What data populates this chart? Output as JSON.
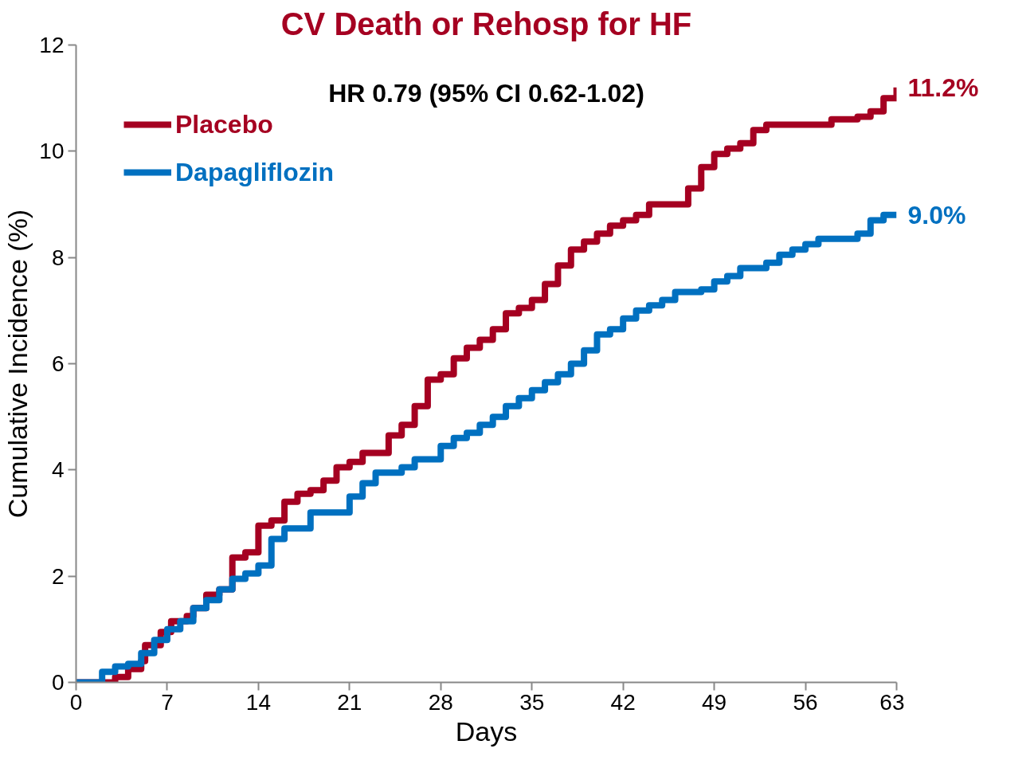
{
  "chart_data": {
    "type": "step",
    "title": "CV Death or Rehosp for HF",
    "xlabel": "Days",
    "ylabel": "Cumulative Incidence (%)",
    "xlim": [
      0,
      63
    ],
    "xticks": [
      0,
      7,
      14,
      21,
      28,
      35,
      42,
      49,
      56,
      63
    ],
    "ylim": [
      0,
      12
    ],
    "yticks": [
      0,
      2,
      4,
      6,
      8,
      10,
      12
    ],
    "grid": false,
    "legend": "top left",
    "line_style": "solid",
    "marker": "none",
    "series": [
      {
        "name": "Placebo",
        "color": "#a50021",
        "x": [
          0,
          3,
          4,
          5,
          5.3,
          6.5,
          7.3,
          8.5,
          9,
          10,
          11,
          12,
          13,
          14,
          15,
          16,
          17,
          18,
          19,
          20,
          21,
          22,
          24,
          25,
          26,
          27,
          28,
          29,
          30,
          31,
          32,
          33,
          34,
          35,
          36,
          37,
          38,
          39,
          40,
          41,
          42,
          43,
          44,
          47,
          48,
          49,
          50,
          51,
          52,
          53,
          58,
          60,
          61,
          62,
          63
        ],
        "values": [
          0,
          0.1,
          0.25,
          0.4,
          0.7,
          0.95,
          1.15,
          1.25,
          1.4,
          1.65,
          1.75,
          2.35,
          2.45,
          2.95,
          3.05,
          3.4,
          3.55,
          3.62,
          3.8,
          4.05,
          4.15,
          4.32,
          4.65,
          4.85,
          5.2,
          5.7,
          5.8,
          6.1,
          6.3,
          6.45,
          6.65,
          6.95,
          7.05,
          7.2,
          7.5,
          7.85,
          8.15,
          8.3,
          8.45,
          8.6,
          8.7,
          8.8,
          9.0,
          9.3,
          9.7,
          9.95,
          10.05,
          10.15,
          10.4,
          10.5,
          10.6,
          10.65,
          10.75,
          11.0,
          11.2
        ]
      },
      {
        "name": "Dapagliflozin",
        "color": "#0070c0",
        "x": [
          0,
          2,
          3,
          4,
          5,
          6,
          7,
          8,
          9,
          10,
          11,
          12,
          13,
          14,
          15,
          16,
          18,
          21,
          22,
          23,
          25,
          26,
          28,
          29,
          30,
          31,
          32,
          33,
          34,
          35,
          36,
          37,
          38,
          39,
          40,
          41,
          42,
          43,
          44,
          45,
          46,
          48,
          49,
          50,
          51,
          53,
          54,
          55,
          56,
          57,
          60,
          61,
          62,
          63
        ],
        "values": [
          0,
          0.2,
          0.3,
          0.35,
          0.55,
          0.8,
          1.0,
          1.15,
          1.4,
          1.55,
          1.75,
          1.95,
          2.05,
          2.2,
          2.7,
          2.9,
          3.2,
          3.5,
          3.75,
          3.95,
          4.05,
          4.2,
          4.45,
          4.6,
          4.7,
          4.85,
          5.0,
          5.2,
          5.35,
          5.5,
          5.65,
          5.8,
          6.0,
          6.25,
          6.55,
          6.65,
          6.85,
          7.0,
          7.1,
          7.2,
          7.35,
          7.4,
          7.55,
          7.65,
          7.8,
          7.9,
          8.05,
          8.15,
          8.25,
          8.35,
          8.45,
          8.7,
          8.8,
          8.8
        ]
      }
    ],
    "annotations": [
      "HR 0.79 (95% CI 0.62-1.02)",
      {
        "text": "11.2%",
        "x": 63,
        "y": 11.2
      },
      {
        "text": "9.0%",
        "x": 63,
        "y": 8.8
      }
    ]
  }
}
